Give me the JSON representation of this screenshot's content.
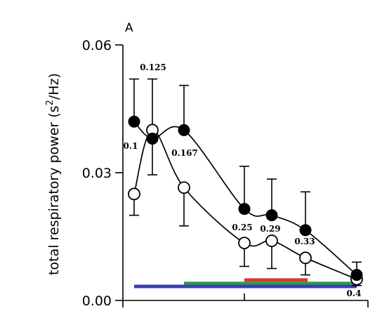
{
  "chart_data": {
    "type": "line",
    "panel_label": "A",
    "title": "",
    "xlabel": "",
    "ylabel": "total respiratory power (s²/Hz)",
    "ylabel_main": "total respiratory power (s",
    "ylabel_sup": "2",
    "ylabel_end": "/Hz)",
    "ylim": [
      0,
      0.06
    ],
    "yticks": [
      0,
      0.03,
      0.06
    ],
    "ytick_labels": [
      "0.00",
      "0.03",
      "0.06"
    ],
    "grid": false,
    "legend": "none",
    "annotations": [
      "0.1",
      "0.125",
      "0.167",
      "0.25",
      "0.29",
      "0.33",
      "0.4"
    ],
    "series": [
      {
        "marker": "filled-circle",
        "x": [
          0.1,
          0.125,
          0.167,
          0.25,
          0.29,
          0.33,
          0.4
        ],
        "values": [
          0.042,
          0.038,
          0.04,
          0.0215,
          0.02,
          0.0165,
          0.006
        ],
        "error_upper": [
          0.052,
          null,
          0.0505,
          0.0315,
          0.0285,
          0.0255,
          0.009
        ]
      },
      {
        "marker": "open-circle",
        "x": [
          0.1,
          0.125,
          0.167,
          0.25,
          0.29,
          0.33,
          0.4
        ],
        "values": [
          0.025,
          0.04,
          0.0265,
          0.0135,
          0.014,
          0.01,
          0.005
        ],
        "error_upper": [
          null,
          0.052,
          null,
          null,
          null,
          null,
          null
        ],
        "error_lower": [
          0.02,
          0.0295,
          0.0175,
          0.008,
          0.0075,
          0.006,
          0.0035
        ]
      }
    ],
    "range_bars": [
      {
        "color": "#d43a32",
        "x_start": 0.25,
        "x_end": 0.37,
        "y": 0.0048
      },
      {
        "color": "#2f9a4e",
        "x_start": 0.167,
        "x_end": 0.4,
        "y": 0.004
      },
      {
        "color": "#3c3cb5",
        "x_start": 0.1,
        "x_end": 0.4,
        "y": 0.0033
      }
    ]
  }
}
